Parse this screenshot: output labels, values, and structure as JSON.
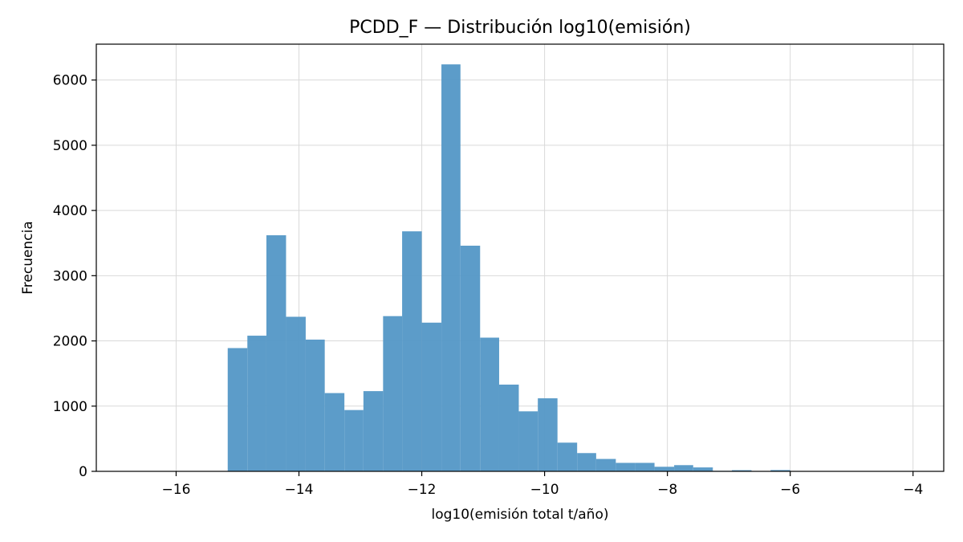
{
  "chart_data": {
    "type": "bar",
    "title": "PCDD_F — Distribución log10(emisión)",
    "xlabel": "log10(emisión total t/año)",
    "ylabel": "Frecuencia",
    "xlim": [
      -17.3,
      -3.5
    ],
    "ylim": [
      0,
      6550
    ],
    "grid": true,
    "bar_color": "#5799c7",
    "x_ticks": [
      -16,
      -14,
      -12,
      -10,
      -8,
      -6,
      -4
    ],
    "x_tick_labels": [
      "−16",
      "−14",
      "−12",
      "−10",
      "−8",
      "−6",
      "−4"
    ],
    "y_ticks": [
      0,
      1000,
      2000,
      3000,
      4000,
      5000,
      6000
    ],
    "y_tick_labels": [
      "0",
      "1000",
      "2000",
      "3000",
      "4000",
      "5000",
      "6000"
    ],
    "bins": [
      {
        "x0": -15.16,
        "x1": -14.84,
        "count": 1890
      },
      {
        "x0": -14.84,
        "x1": -14.53,
        "count": 2080
      },
      {
        "x0": -14.53,
        "x1": -14.21,
        "count": 3620
      },
      {
        "x0": -14.21,
        "x1": -13.89,
        "count": 2370
      },
      {
        "x0": -13.89,
        "x1": -13.58,
        "count": 2020
      },
      {
        "x0": -13.58,
        "x1": -13.26,
        "count": 1200
      },
      {
        "x0": -13.26,
        "x1": -12.95,
        "count": 940
      },
      {
        "x0": -12.95,
        "x1": -12.63,
        "count": 1230
      },
      {
        "x0": -12.63,
        "x1": -12.32,
        "count": 2380
      },
      {
        "x0": -12.32,
        "x1": -12.0,
        "count": 3680
      },
      {
        "x0": -12.0,
        "x1": -11.68,
        "count": 2280
      },
      {
        "x0": -11.68,
        "x1": -11.37,
        "count": 6240
      },
      {
        "x0": -11.37,
        "x1": -11.05,
        "count": 3460
      },
      {
        "x0": -11.05,
        "x1": -10.74,
        "count": 2050
      },
      {
        "x0": -10.74,
        "x1": -10.42,
        "count": 1330
      },
      {
        "x0": -10.42,
        "x1": -10.11,
        "count": 920
      },
      {
        "x0": -10.11,
        "x1": -9.79,
        "count": 1120
      },
      {
        "x0": -9.79,
        "x1": -9.47,
        "count": 440
      },
      {
        "x0": -9.47,
        "x1": -9.16,
        "count": 280
      },
      {
        "x0": -9.16,
        "x1": -8.84,
        "count": 190
      },
      {
        "x0": -8.84,
        "x1": -8.53,
        "count": 130
      },
      {
        "x0": -8.53,
        "x1": -8.21,
        "count": 130
      },
      {
        "x0": -8.21,
        "x1": -7.89,
        "count": 70
      },
      {
        "x0": -7.89,
        "x1": -7.58,
        "count": 95
      },
      {
        "x0": -7.58,
        "x1": -7.26,
        "count": 60
      },
      {
        "x0": -7.26,
        "x1": -6.95,
        "count": 8
      },
      {
        "x0": -6.95,
        "x1": -6.63,
        "count": 18
      },
      {
        "x0": -6.63,
        "x1": -6.32,
        "count": 6
      },
      {
        "x0": -6.32,
        "x1": -6.0,
        "count": 20
      },
      {
        "x0": -6.0,
        "x1": -5.68,
        "count": 4
      },
      {
        "x0": -5.68,
        "x1": -5.37,
        "count": 3
      },
      {
        "x0": -5.37,
        "x1": -5.05,
        "count": 3
      },
      {
        "x0": -5.05,
        "x1": -4.74,
        "count": 2
      },
      {
        "x0": -4.74,
        "x1": -4.42,
        "count": 2
      },
      {
        "x0": -4.42,
        "x1": -4.11,
        "count": 1
      },
      {
        "x0": -4.11,
        "x1": -3.97,
        "count": 1
      }
    ]
  }
}
